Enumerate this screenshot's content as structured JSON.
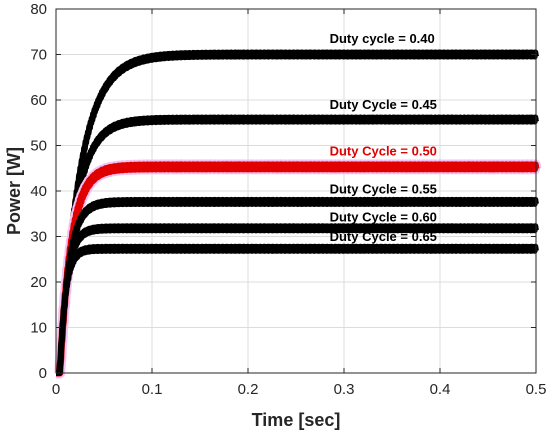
{
  "chart_data": {
    "type": "line",
    "xlabel": "Time [sec]",
    "ylabel": "Power [W]",
    "xlim": [
      0,
      0.5
    ],
    "ylim": [
      0,
      80
    ],
    "xticks": [
      0,
      0.1,
      0.2,
      0.3,
      0.4,
      0.5
    ],
    "xtick_labels": [
      "0",
      "0.1",
      "0.2",
      "0.3",
      "0.4",
      "0.5"
    ],
    "yticks": [
      0,
      10,
      20,
      30,
      40,
      50,
      60,
      70,
      80
    ],
    "ytick_labels": [
      "0",
      "10",
      "20",
      "30",
      "40",
      "50",
      "60",
      "70",
      "80"
    ],
    "grid": true,
    "series": [
      {
        "name": "Duty cycle = 0.40",
        "steady_state": 70,
        "time_constant": 0.021,
        "color": "#000000"
      },
      {
        "name": "Duty Cycle = 0.45",
        "steady_state": 55.7,
        "time_constant": 0.016,
        "color": "#000000"
      },
      {
        "name": "Duty Cycle = 0.50",
        "steady_state": 45.3,
        "time_constant": 0.012,
        "color": "#e00000"
      },
      {
        "name": "Duty Cycle = 0.55",
        "steady_state": 37.6,
        "time_constant": 0.0095,
        "color": "#000000"
      },
      {
        "name": "Duty Cycle = 0.60",
        "steady_state": 31.8,
        "time_constant": 0.0075,
        "color": "#000000"
      },
      {
        "name": "Duty Cycle = 0.65",
        "steady_state": 27.3,
        "time_constant": 0.006,
        "color": "#000000"
      }
    ],
    "annotations": [
      {
        "text": "Duty cycle = 0.40",
        "x": 0.285,
        "y": 72.5,
        "color": "#000000"
      },
      {
        "text": "Duty Cycle = 0.45",
        "x": 0.285,
        "y": 58.0,
        "color": "#000000"
      },
      {
        "text": "Duty Cycle = 0.50",
        "x": 0.285,
        "y": 47.8,
        "color": "#e00000"
      },
      {
        "text": "Duty Cycle = 0.55",
        "x": 0.285,
        "y": 39.5,
        "color": "#000000"
      },
      {
        "text": "Duty Cycle = 0.60",
        "x": 0.285,
        "y": 33.3,
        "color": "#000000"
      },
      {
        "text": "Duty Cycle = 0.65",
        "x": 0.285,
        "y": 29.0,
        "color": "#000000"
      }
    ]
  }
}
